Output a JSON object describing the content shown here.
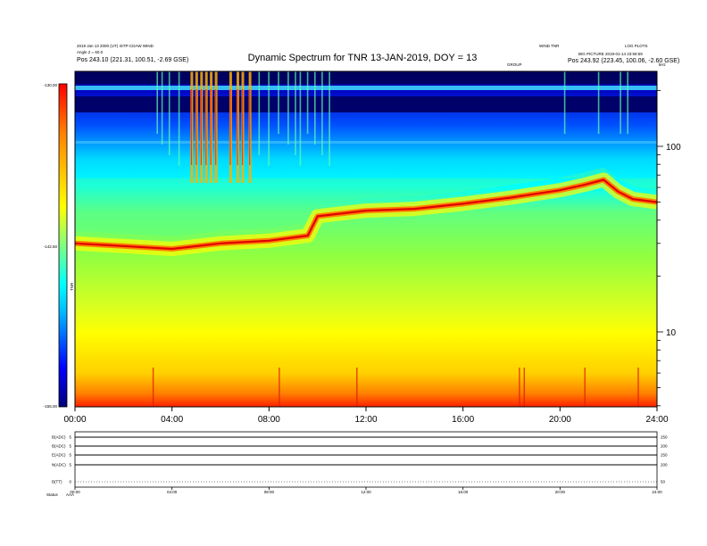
{
  "header": {
    "title": "Dynamic Spectrum for TNR 13-JAN-2019, DOY = 13",
    "left_line1": "2019 Jan 13 2000 (UT) ISTP-CDAW WIND",
    "left_line2": "Angle 2 = 60.0",
    "left_pos": "Pos   243.10 (221.31, 100.51, -2.69 GSE)",
    "right_line1": "WIND TNR",
    "right_line2": "LOG PLOTS",
    "right_line3": "BIG PICTURE 2019-01-14 23:59:59",
    "right_pos": "Pos   243.92 (223.45, 100.06, -2.60 GSE)",
    "band_label": "GROUP",
    "khz_label": "kHz"
  },
  "colorbar": {
    "top_label": "-130.00",
    "mid_label": "-142.50",
    "bottom_label": "-155.00",
    "unit_label": "TNR"
  },
  "chart_data": {
    "type": "heatmap",
    "title": "Dynamic Spectrum for TNR 13-JAN-2019, DOY = 13",
    "x_ticks": [
      "00:00",
      "04:00",
      "08:00",
      "12:00",
      "16:00",
      "20:00",
      "24:00"
    ],
    "x_range_hours": [
      0,
      24
    ],
    "y_scale": "log",
    "y_ticks": [
      100,
      10
    ],
    "colorbar_range": [
      -155.0,
      -130.0
    ],
    "colormap": [
      "#000080",
      "#0000ff",
      "#00ffff",
      "#ffff00",
      "#ff0000"
    ],
    "plasma_line": {
      "description_hours": [
        0,
        2,
        4,
        6,
        8,
        9.6,
        10,
        12,
        14,
        16,
        18,
        20,
        21,
        21.8,
        22.4,
        23,
        24
      ],
      "freq_khz": [
        30,
        29,
        28,
        30,
        31,
        33,
        42,
        45,
        46,
        49,
        53,
        58,
        62,
        66,
        57,
        52,
        50
      ]
    }
  },
  "panels": {
    "labels": [
      "B(ADC)",
      "B(ADC)",
      "E(ADC)",
      "N(ADC)",
      "B(TT)"
    ],
    "left_values": [
      "5",
      "5",
      "5",
      "5",
      "0"
    ],
    "right_values": [
      "250",
      "200",
      "250",
      "200",
      "50"
    ],
    "x_ticks": [
      "00:00",
      "04:00",
      "08:00",
      "12:00",
      "16:00",
      "20:00",
      "24:00"
    ],
    "status_label": "Status",
    "status_value": "AAA"
  }
}
